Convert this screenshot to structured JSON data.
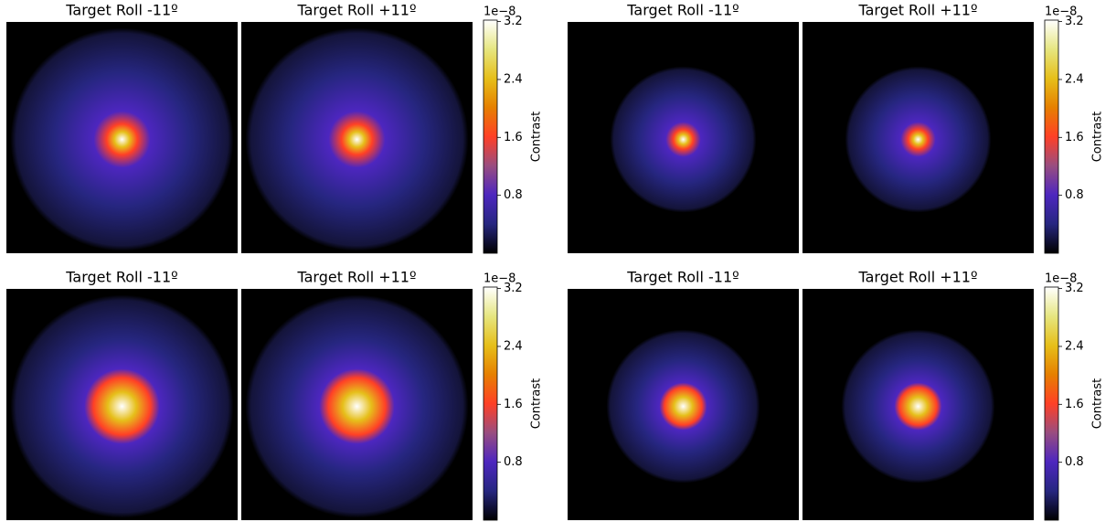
{
  "chart_data": [
    {
      "type": "image",
      "panels": [
        {
          "title": "Target Roll -11º"
        },
        {
          "title": "Target Roll +11º"
        }
      ],
      "colorbar": {
        "label": "Contrast",
        "offset_label": "1e−8",
        "clim": [
          0,
          3.22
        ],
        "ticks": [
          0.8,
          1.6,
          2.4,
          3.2
        ],
        "colormap": "CMRmap"
      }
    },
    {
      "type": "image",
      "panels": [
        {
          "title": "Target Roll -11º"
        },
        {
          "title": "Target Roll +11º"
        }
      ],
      "colorbar": {
        "label": "Contrast",
        "offset_label": "1e−8",
        "clim": [
          0,
          3.22
        ],
        "ticks": [
          0.8,
          1.6,
          2.4,
          3.2
        ],
        "colormap": "CMRmap"
      }
    },
    {
      "type": "image",
      "panels": [
        {
          "title": "Target Roll -11º"
        },
        {
          "title": "Target Roll +11º"
        }
      ],
      "colorbar": {
        "label": "Contrast",
        "offset_label": "1e−8",
        "clim": [
          0,
          3.22
        ],
        "ticks": [
          0.8,
          1.6,
          2.4,
          3.2
        ],
        "colormap": "CMRmap"
      }
    },
    {
      "type": "image",
      "panels": [
        {
          "title": "Target Roll -11º"
        },
        {
          "title": "Target Roll +11º"
        }
      ],
      "colorbar": {
        "label": "Contrast",
        "offset_label": "1e−8",
        "clim": [
          0,
          3.22
        ],
        "ticks": [
          0.8,
          1.6,
          2.4,
          3.2
        ],
        "colormap": "CMRmap"
      }
    }
  ]
}
